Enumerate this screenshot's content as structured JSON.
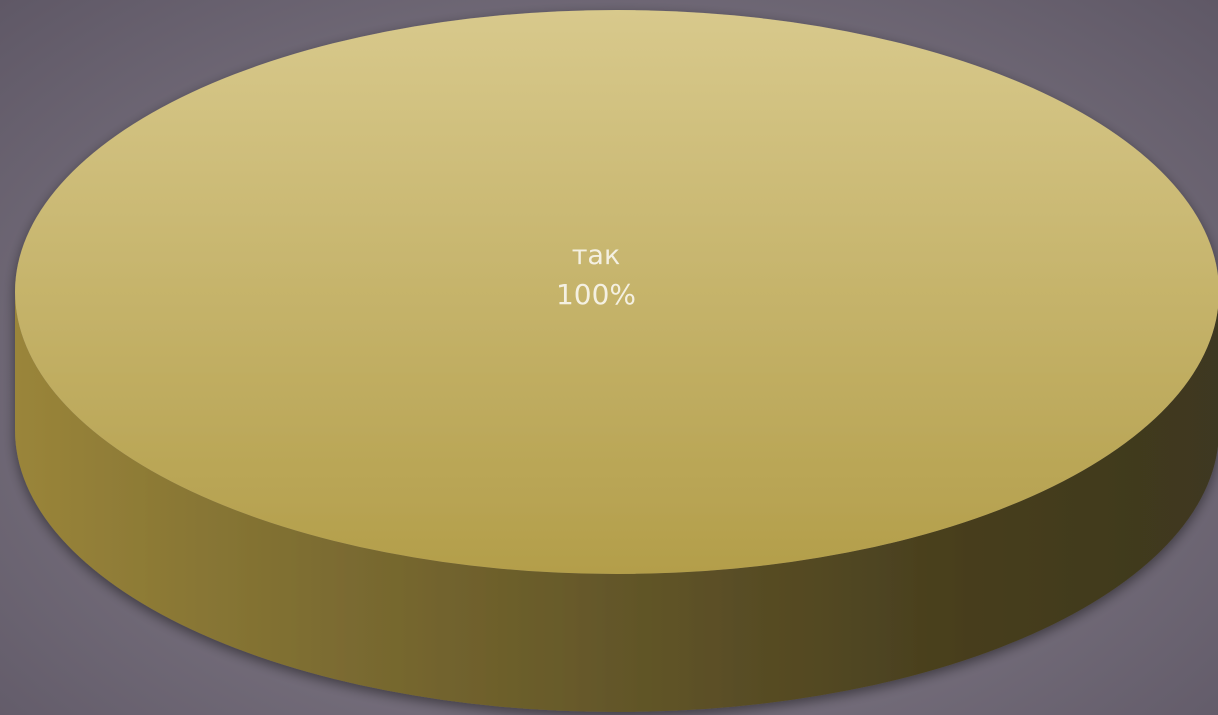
{
  "chart_data": {
    "type": "pie",
    "style": "3d",
    "title": "",
    "slices": [
      {
        "label": "так",
        "value": 100,
        "percent_label": "100%",
        "color": "#b39e4a"
      }
    ],
    "legend": "none",
    "data_labels": "inside"
  },
  "colors": {
    "background": "#7a7380",
    "slice_top_light": "#d8c98c",
    "slice_top_dark": "#b39e4a",
    "slice_side_light": "#a89140",
    "slice_side_dark": "#3e3820"
  }
}
